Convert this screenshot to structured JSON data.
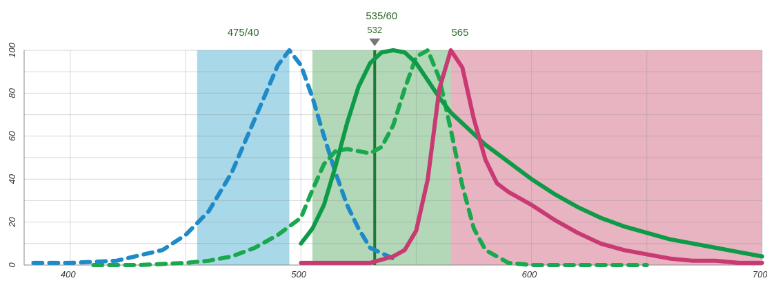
{
  "chart_data": {
    "type": "line",
    "title": "",
    "xlabel": "",
    "ylabel": "",
    "xlim": [
      380,
      700
    ],
    "ylim": [
      0,
      100
    ],
    "x_ticks": [
      400,
      500,
      600,
      700
    ],
    "y_ticks": [
      0,
      20,
      40,
      60,
      80,
      100
    ],
    "x_tick_labels": [
      "400",
      "500",
      "600",
      "700"
    ],
    "y_tick_labels": [
      "0",
      "20",
      "40",
      "60",
      "80",
      "100"
    ],
    "grid": true,
    "filters": [
      {
        "label": "475/40",
        "from": 455,
        "to": 495,
        "color": "#a9d8e8"
      },
      {
        "label": "535/60",
        "from": 505,
        "to": 565,
        "color": "#b2d8b8"
      },
      {
        "label": "565",
        "from": 565,
        "to": 700,
        "color": "#e8b4c2"
      }
    ],
    "laser": {
      "label": "532",
      "x": 532,
      "color": "#1e7a2e"
    },
    "series": [
      {
        "style": "dashed",
        "color": "#1f8ac8",
        "x": [
          384,
          400,
          420,
          440,
          450,
          460,
          470,
          480,
          490,
          495,
          500,
          505,
          510,
          515,
          520,
          525,
          530,
          540
        ],
        "y": [
          1,
          1,
          2,
          7,
          14,
          25,
          43,
          68,
          93,
          100,
          93,
          78,
          60,
          43,
          28,
          17,
          8,
          3
        ]
      },
      {
        "style": "dashed",
        "color": "#1aa84e",
        "x": [
          410,
          430,
          450,
          460,
          470,
          480,
          490,
          500,
          505,
          510,
          515,
          520,
          525,
          530,
          535,
          540,
          545,
          550,
          555,
          560,
          565,
          570,
          575,
          580,
          590,
          600,
          610,
          620,
          630,
          640,
          650
        ],
        "y": [
          0,
          0,
          1,
          2,
          4,
          8,
          14,
          22,
          35,
          47,
          53,
          54,
          53,
          52,
          55,
          65,
          82,
          97,
          100,
          87,
          63,
          37,
          17,
          7,
          1,
          0,
          0,
          0,
          0,
          0,
          0
        ]
      },
      {
        "style": "solid",
        "color": "#0f9a48",
        "x": [
          500,
          505,
          510,
          515,
          520,
          525,
          530,
          535,
          540,
          545,
          550,
          555,
          560,
          565,
          570,
          580,
          590,
          600,
          610,
          620,
          630,
          640,
          650,
          660,
          670,
          680,
          690,
          700
        ],
        "y": [
          10,
          17,
          28,
          46,
          66,
          83,
          94,
          99,
          100,
          99,
          94,
          86,
          78,
          71,
          66,
          56,
          48,
          40,
          33,
          27,
          22,
          18,
          15,
          12,
          10,
          8,
          6,
          4
        ]
      },
      {
        "style": "solid",
        "color": "#c93a72",
        "x": [
          500,
          520,
          530,
          540,
          545,
          550,
          555,
          560,
          565,
          570,
          575,
          580,
          585,
          590,
          600,
          610,
          620,
          630,
          640,
          650,
          660,
          670,
          680,
          690,
          700
        ],
        "y": [
          1,
          1,
          1,
          4,
          7,
          16,
          40,
          82,
          100,
          92,
          68,
          49,
          38,
          34,
          28,
          21,
          15,
          10,
          7,
          5,
          3,
          2,
          2,
          1,
          1
        ]
      }
    ]
  }
}
